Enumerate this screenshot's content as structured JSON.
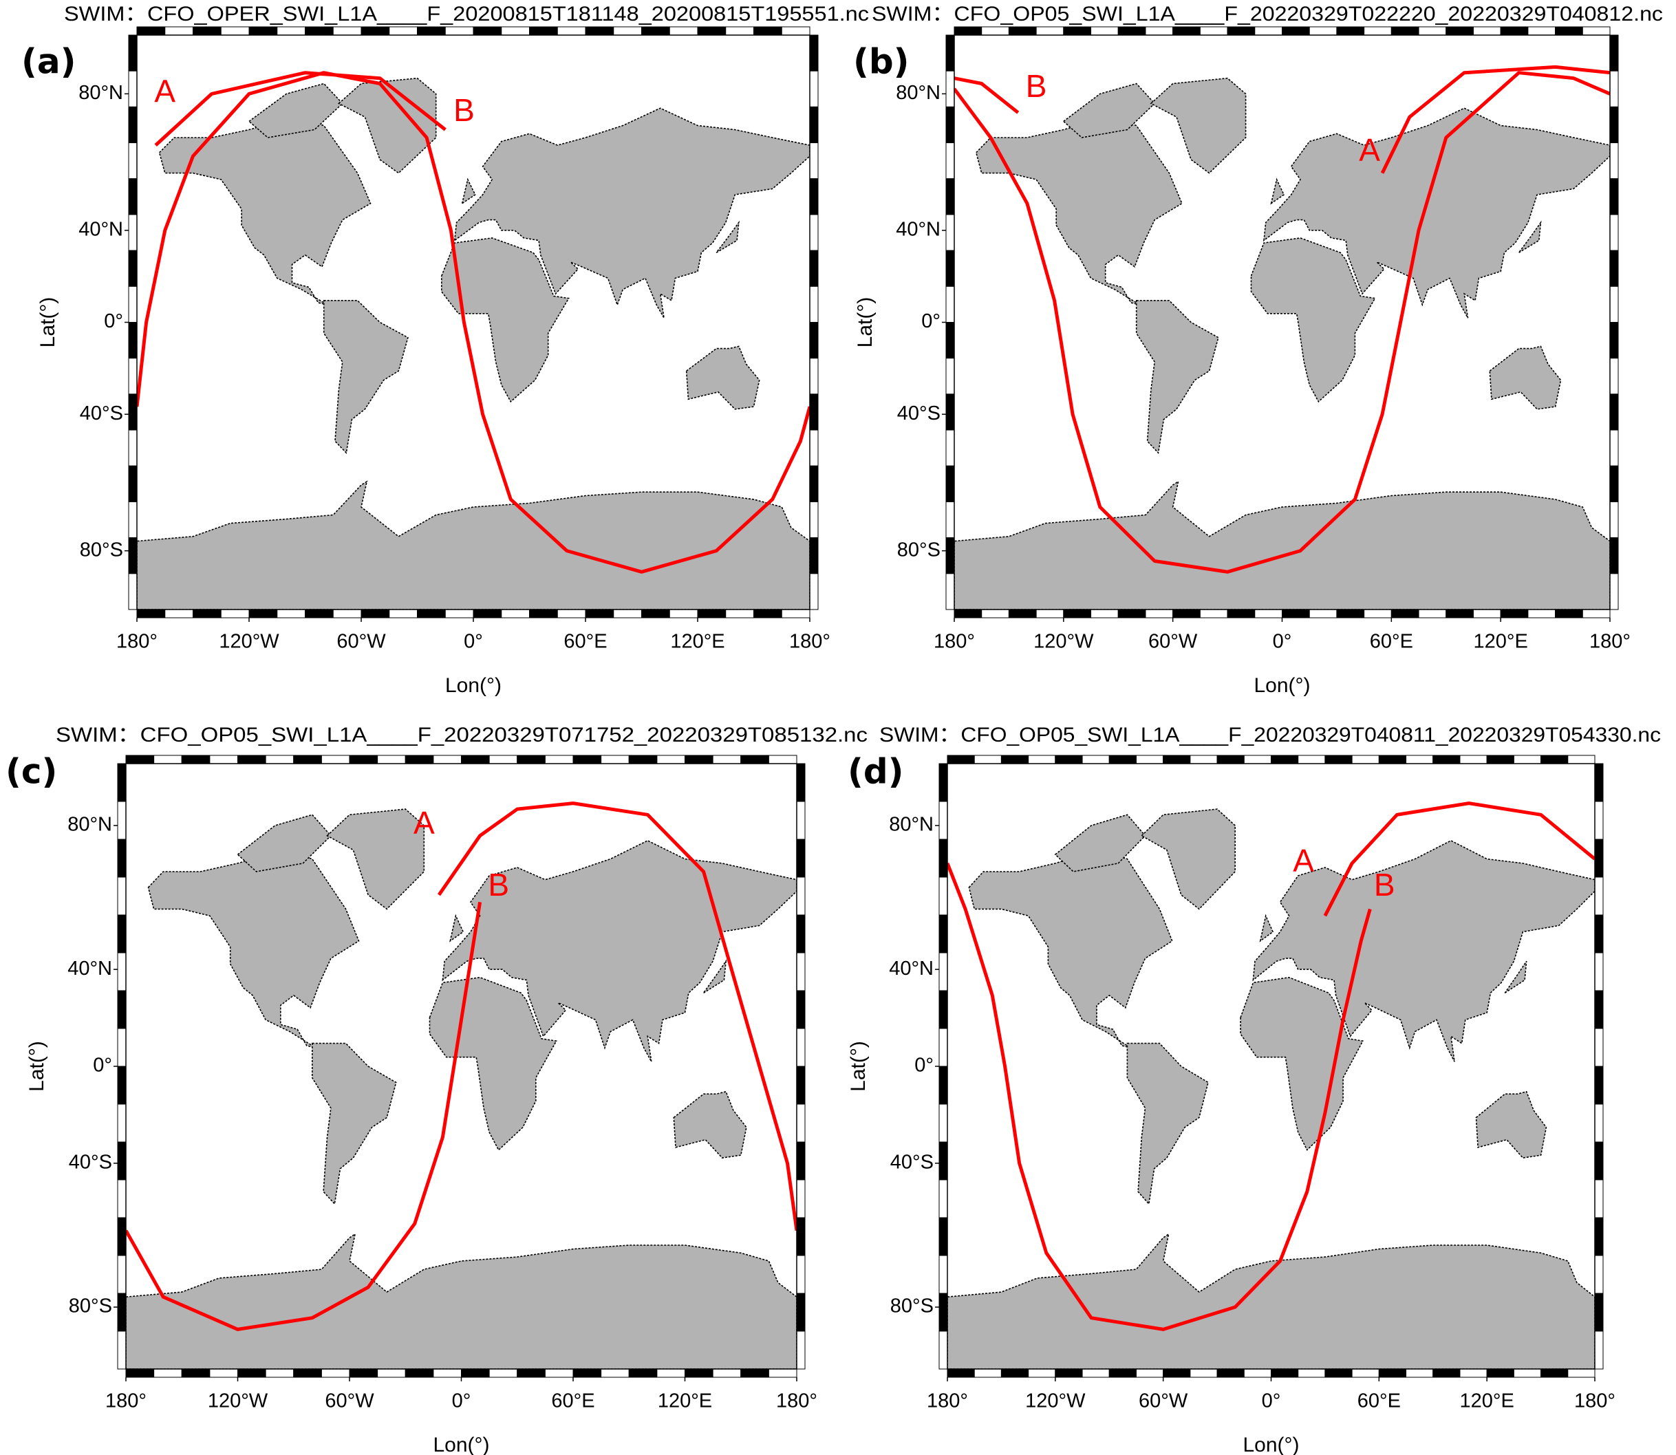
{
  "panels": [
    {
      "label": "(a)",
      "title": "SWIM：CFO_OPER_SWI_L1A____F_20200815T181148_20200815T195551.nc",
      "xlabel": "Lon(°)",
      "ylabel": "Lat(°)",
      "xlim": [
        -180,
        180
      ],
      "ylim": [
        -90,
        90
      ],
      "xticks": [
        {
          "value": -180,
          "label": "180°"
        },
        {
          "value": -120,
          "label": "120°W"
        },
        {
          "value": -60,
          "label": "60°W"
        },
        {
          "value": 0,
          "label": "0°"
        },
        {
          "value": 60,
          "label": "60°E"
        },
        {
          "value": 120,
          "label": "120°E"
        },
        {
          "value": 180,
          "label": "180°"
        }
      ],
      "yticks": [
        {
          "value": 80,
          "label": "80°N"
        },
        {
          "value": 40,
          "label": "40°N"
        },
        {
          "value": 0,
          "label": "0°"
        },
        {
          "value": -40,
          "label": "40°S"
        },
        {
          "value": -80,
          "label": "80°S"
        }
      ],
      "annotations": [
        "A",
        "B"
      ]
    },
    {
      "label": "(b)",
      "title": "SWIM：CFO_OP05_SWI_L1A____F_20220329T022220_20220329T040812.nc",
      "xlabel": "Lon(°)",
      "ylabel": "Lat(°)",
      "xlim": [
        -180,
        180
      ],
      "ylim": [
        -90,
        90
      ],
      "xticks": [
        {
          "value": -180,
          "label": "180°"
        },
        {
          "value": -120,
          "label": "120°W"
        },
        {
          "value": -60,
          "label": "60°W"
        },
        {
          "value": 0,
          "label": "0°"
        },
        {
          "value": 60,
          "label": "60°E"
        },
        {
          "value": 120,
          "label": "120°E"
        },
        {
          "value": 180,
          "label": "180°"
        }
      ],
      "yticks": [
        {
          "value": 80,
          "label": "80°N"
        },
        {
          "value": 40,
          "label": "40°N"
        },
        {
          "value": 0,
          "label": "0°"
        },
        {
          "value": -40,
          "label": "40°S"
        },
        {
          "value": -80,
          "label": "80°S"
        }
      ],
      "annotations": [
        "A",
        "B"
      ]
    },
    {
      "label": "(c)",
      "title": "SWIM：CFO_OP05_SWI_L1A____F_20220329T071752_20220329T085132.nc",
      "xlabel": "Lon(°)",
      "ylabel": "Lat(°)",
      "xlim": [
        -180,
        180
      ],
      "ylim": [
        -90,
        90
      ],
      "xticks": [
        {
          "value": -180,
          "label": "180°"
        },
        {
          "value": -120,
          "label": "120°W"
        },
        {
          "value": -60,
          "label": "60°W"
        },
        {
          "value": 0,
          "label": "0°"
        },
        {
          "value": 60,
          "label": "60°E"
        },
        {
          "value": 120,
          "label": "120°E"
        },
        {
          "value": 180,
          "label": "180°"
        }
      ],
      "yticks": [
        {
          "value": 80,
          "label": "80°N"
        },
        {
          "value": 40,
          "label": "40°N"
        },
        {
          "value": 0,
          "label": "0°"
        },
        {
          "value": -40,
          "label": "40°S"
        },
        {
          "value": -80,
          "label": "80°S"
        }
      ],
      "annotations": [
        "A",
        "B"
      ]
    },
    {
      "label": "(d)",
      "title": "SWIM：CFO_OP05_SWI_L1A____F_20220329T040811_20220329T054330.nc",
      "xlabel": "Lon(°)",
      "ylabel": "Lat(°)",
      "xlim": [
        -180,
        180
      ],
      "ylim": [
        -90,
        90
      ],
      "xticks": [
        {
          "value": -180,
          "label": "180°"
        },
        {
          "value": -120,
          "label": "120°W"
        },
        {
          "value": -60,
          "label": "60°W"
        },
        {
          "value": 0,
          "label": "0°"
        },
        {
          "value": 60,
          "label": "60°E"
        },
        {
          "value": 120,
          "label": "120°E"
        },
        {
          "value": 180,
          "label": "180°"
        }
      ],
      "yticks": [
        {
          "value": 80,
          "label": "80°N"
        },
        {
          "value": 40,
          "label": "40°N"
        },
        {
          "value": 0,
          "label": "0°"
        },
        {
          "value": -40,
          "label": "40°S"
        },
        {
          "value": -80,
          "label": "80°S"
        }
      ],
      "annotations": [
        "A",
        "B"
      ]
    }
  ]
}
